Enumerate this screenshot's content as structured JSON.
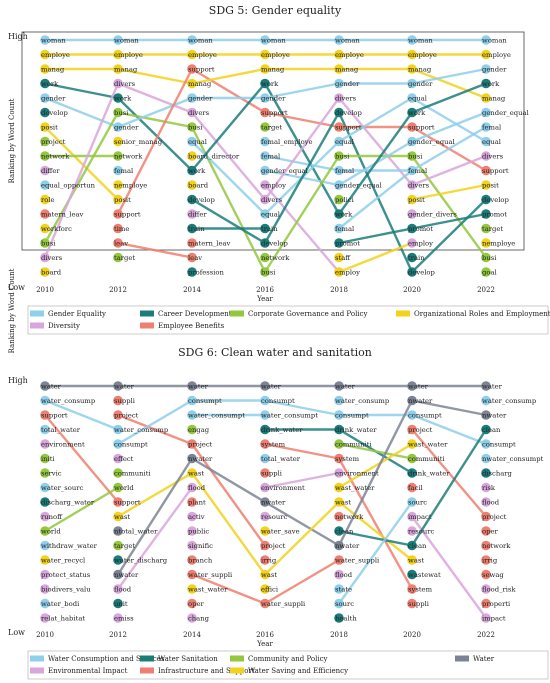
{
  "panels": [
    {
      "title": "SDG 5: Gender equality",
      "ylabel": "Ranking by Word Count",
      "xlabel": "Year",
      "high_label": "High",
      "low_label": "Low",
      "years": [
        "2010",
        "2012",
        "2014",
        "2016",
        "2018",
        "2020",
        "2022"
      ],
      "categories": [
        {
          "name": "Gender Equality",
          "color": "#8ecfea"
        },
        {
          "name": "Career Development",
          "color": "#1a7d7a"
        },
        {
          "name": "Corporate Governance and Policy",
          "color": "#93c83e"
        },
        {
          "name": "Organizational Roles and Employment",
          "color": "#f2d21b"
        },
        {
          "name": "Diversity",
          "color": "#d9a6dc"
        },
        {
          "name": "Employee Benefits",
          "color": "#ef7f70"
        }
      ],
      "columns": [
        [
          [
            "woman",
            0
          ],
          [
            "employe",
            3
          ],
          [
            "manag",
            3
          ],
          [
            "work",
            1
          ],
          [
            "gender",
            0
          ],
          [
            "develop",
            1
          ],
          [
            "posit",
            3
          ],
          [
            "project",
            2
          ],
          [
            "network",
            2
          ],
          [
            "differ",
            4
          ],
          [
            "equal_opportun",
            0
          ],
          [
            "role",
            3
          ],
          [
            "matern_leav",
            5
          ],
          [
            "workforc",
            3
          ],
          [
            "busi",
            2
          ],
          [
            "divers",
            4
          ],
          [
            "board",
            3
          ]
        ],
        [
          [
            "woman",
            0
          ],
          [
            "employe",
            3
          ],
          [
            "manag",
            3
          ],
          [
            "divers",
            4
          ],
          [
            "work",
            1
          ],
          [
            "busi",
            2
          ],
          [
            "gender",
            0
          ],
          [
            "senior_manag",
            3
          ],
          [
            "network",
            2
          ],
          [
            "femal",
            0
          ],
          [
            "nemploye",
            3
          ],
          [
            "posit",
            3
          ],
          [
            "support",
            5
          ],
          [
            "time",
            5
          ],
          [
            "leav",
            5
          ],
          [
            "target",
            2
          ]
        ],
        [
          [
            "woman",
            0
          ],
          [
            "employe",
            3
          ],
          [
            "support",
            5
          ],
          [
            "manag",
            3
          ],
          [
            "gender",
            0
          ],
          [
            "divers",
            4
          ],
          [
            "busi",
            2
          ],
          [
            "equal",
            0
          ],
          [
            "board_director",
            3
          ],
          [
            "work",
            1
          ],
          [
            "board",
            3
          ],
          [
            "develop",
            1
          ],
          [
            "differ",
            4
          ],
          [
            "train",
            1
          ],
          [
            "matern_leav",
            5
          ],
          [
            "leav",
            5
          ],
          [
            "profession",
            1
          ]
        ],
        [
          [
            "woman",
            0
          ],
          [
            "employe",
            3
          ],
          [
            "manag",
            3
          ],
          [
            "work",
            1
          ],
          [
            "gender",
            0
          ],
          [
            "support",
            5
          ],
          [
            "target",
            2
          ],
          [
            "femal_employe",
            0
          ],
          [
            "femal",
            0
          ],
          [
            "gender_equal",
            0
          ],
          [
            "employ",
            4
          ],
          [
            "divers",
            4
          ],
          [
            "equal",
            0
          ],
          [
            "train",
            1
          ],
          [
            "develop",
            1
          ],
          [
            "network",
            2
          ],
          [
            "busi",
            2
          ]
        ],
        [
          [
            "woman",
            0
          ],
          [
            "employe",
            3
          ],
          [
            "manag",
            3
          ],
          [
            "gender",
            0
          ],
          [
            "divers",
            4
          ],
          [
            "develop",
            1
          ],
          [
            "support",
            5
          ],
          [
            "equal",
            0
          ],
          [
            "busi",
            2
          ],
          [
            "femal",
            0
          ],
          [
            "gender_equal",
            0
          ],
          [
            "polici",
            2
          ],
          [
            "work",
            1
          ],
          [
            "femal",
            0
          ],
          [
            "promot",
            1
          ],
          [
            "staff",
            3
          ],
          [
            "employ",
            3
          ]
        ],
        [
          [
            "woman",
            0
          ],
          [
            "employe",
            3
          ],
          [
            "manag",
            3
          ],
          [
            "gender",
            0
          ],
          [
            "equal",
            0
          ],
          [
            "work",
            1
          ],
          [
            "support",
            5
          ],
          [
            "gender_equal",
            0
          ],
          [
            "busi",
            2
          ],
          [
            "femal",
            0
          ],
          [
            "divers",
            4
          ],
          [
            "posit",
            3
          ],
          [
            "gender_divers",
            4
          ],
          [
            "promot",
            1
          ],
          [
            "employ",
            4
          ],
          [
            "train",
            1
          ],
          [
            "develop",
            1
          ]
        ],
        [
          [
            "woman",
            0
          ],
          [
            "employe",
            3
          ],
          [
            "gender",
            0
          ],
          [
            "work",
            1
          ],
          [
            "manag",
            3
          ],
          [
            "gender_equal",
            0
          ],
          [
            "femal",
            0
          ],
          [
            "equal",
            0
          ],
          [
            "divers",
            4
          ],
          [
            "support",
            5
          ],
          [
            "posit",
            3
          ],
          [
            "develop",
            1
          ],
          [
            "promot",
            1
          ],
          [
            "target",
            2
          ],
          [
            "nemploye",
            3
          ],
          [
            "busi",
            2
          ],
          [
            "goal",
            2
          ]
        ]
      ]
    },
    {
      "title": "SDG 6: Clean water and sanitation",
      "ylabel": "Ranking by Word Count",
      "xlabel": "Year",
      "high_label": "High",
      "low_label": "Low",
      "years": [
        "2010",
        "2012",
        "2014",
        "2016",
        "2018",
        "2020",
        "2022"
      ],
      "categories": [
        {
          "name": "Water Consumption and Sources",
          "color": "#8ecfea"
        },
        {
          "name": "Water Sanitation",
          "color": "#1a7d7a"
        },
        {
          "name": "Community and Policy",
          "color": "#93c83e"
        },
        {
          "name": "Water",
          "color": "#7c8494"
        },
        {
          "name": "Environmental Impact",
          "color": "#d9a6dc"
        },
        {
          "name": "Infrastructure and Support",
          "color": "#ef7f70"
        },
        {
          "name": "Water Saving and Efficiency",
          "color": "#f2d21b"
        }
      ],
      "columns": [
        [
          [
            "water",
            3
          ],
          [
            "water_consump",
            0
          ],
          [
            "support",
            5
          ],
          [
            "total_water",
            0
          ],
          [
            "environment",
            4
          ],
          [
            "initi",
            2
          ],
          [
            "servic",
            2
          ],
          [
            "water_sourc",
            0
          ],
          [
            "discharg_water",
            1
          ],
          [
            "runoff",
            4
          ],
          [
            "world",
            2
          ],
          [
            "withdraw_water",
            0
          ],
          [
            "water_recycl",
            6
          ],
          [
            "protect_status",
            4
          ],
          [
            "biodivers_valu",
            4
          ],
          [
            "water_bodi",
            0
          ],
          [
            "relat_habitat",
            4
          ]
        ],
        [
          [
            "water",
            3
          ],
          [
            "suppli",
            5
          ],
          [
            "project",
            5
          ],
          [
            "water_consump",
            0
          ],
          [
            "consumpt",
            0
          ],
          [
            "effect",
            4
          ],
          [
            "communiti",
            2
          ],
          [
            "world",
            2
          ],
          [
            "support",
            5
          ],
          [
            "wast",
            6
          ],
          [
            "ntotal_water",
            3
          ],
          [
            "target",
            2
          ],
          [
            "water_discharg",
            1
          ],
          [
            "nwater",
            3
          ],
          [
            "flood",
            4
          ],
          [
            "unit",
            1
          ],
          [
            "emiss",
            4
          ]
        ],
        [
          [
            "water",
            3
          ],
          [
            "consumpt",
            0
          ],
          [
            "water_consumpt",
            0
          ],
          [
            "engag",
            2
          ],
          [
            "project",
            5
          ],
          [
            "nwater",
            3
          ],
          [
            "wast",
            6
          ],
          [
            "flood",
            4
          ],
          [
            "plant",
            5
          ],
          [
            "activ",
            4
          ],
          [
            "public",
            4
          ],
          [
            "signific",
            4
          ],
          [
            "branch",
            5
          ],
          [
            "water_suppli",
            5
          ],
          [
            "wast_water",
            6
          ],
          [
            "oper",
            5
          ],
          [
            "chang",
            4
          ]
        ],
        [
          [
            "water",
            3
          ],
          [
            "consumpt",
            0
          ],
          [
            "water_consumpt",
            0
          ],
          [
            "drink_water",
            1
          ],
          [
            "system",
            5
          ],
          [
            "total_water",
            0
          ],
          [
            "suppli",
            5
          ],
          [
            "environment",
            4
          ],
          [
            "nwater",
            3
          ],
          [
            "resourc",
            4
          ],
          [
            "water_save",
            6
          ],
          [
            "project",
            5
          ],
          [
            "irrig",
            5
          ],
          [
            "wast",
            6
          ],
          [
            "effici",
            6
          ],
          [
            "water_suppli",
            5
          ]
        ],
        [
          [
            "water",
            3
          ],
          [
            "water_consump",
            0
          ],
          [
            "consumpt",
            0
          ],
          [
            "drink_water",
            1
          ],
          [
            "communiti",
            2
          ],
          [
            "system",
            5
          ],
          [
            "environment",
            4
          ],
          [
            "wast_water",
            6
          ],
          [
            "wast",
            6
          ],
          [
            "network",
            5
          ],
          [
            "clean",
            1
          ],
          [
            "nwater",
            3
          ],
          [
            "water_suppli",
            5
          ],
          [
            "flood",
            4
          ],
          [
            "state",
            0
          ],
          [
            "sourc",
            0
          ],
          [
            "health",
            1
          ]
        ],
        [
          [
            "water",
            3
          ],
          [
            "nwater",
            3
          ],
          [
            "consumpt",
            0
          ],
          [
            "project",
            5
          ],
          [
            "wast_water",
            6
          ],
          [
            "communiti",
            2
          ],
          [
            "drink_water",
            1
          ],
          [
            "facil",
            5
          ],
          [
            "sourc",
            0
          ],
          [
            "impact",
            4
          ],
          [
            "resourc",
            4
          ],
          [
            "clean",
            1
          ],
          [
            "wast",
            6
          ],
          [
            "wastewat",
            1
          ],
          [
            "system",
            5
          ],
          [
            "suppli",
            5
          ]
        ],
        [
          [
            "water",
            3
          ],
          [
            "water_consump",
            0
          ],
          [
            "nwater",
            3
          ],
          [
            "clean",
            1
          ],
          [
            "consumpt",
            0
          ],
          [
            "nwater_consumpt",
            0
          ],
          [
            "discharg",
            1
          ],
          [
            "risk",
            4
          ],
          [
            "flood",
            4
          ],
          [
            "project",
            5
          ],
          [
            "oper",
            5
          ],
          [
            "network",
            5
          ],
          [
            "irrig",
            5
          ],
          [
            "sewag",
            5
          ],
          [
            "flood_risk",
            4
          ],
          [
            "properti",
            5
          ],
          [
            "impact",
            4
          ]
        ]
      ]
    }
  ]
}
